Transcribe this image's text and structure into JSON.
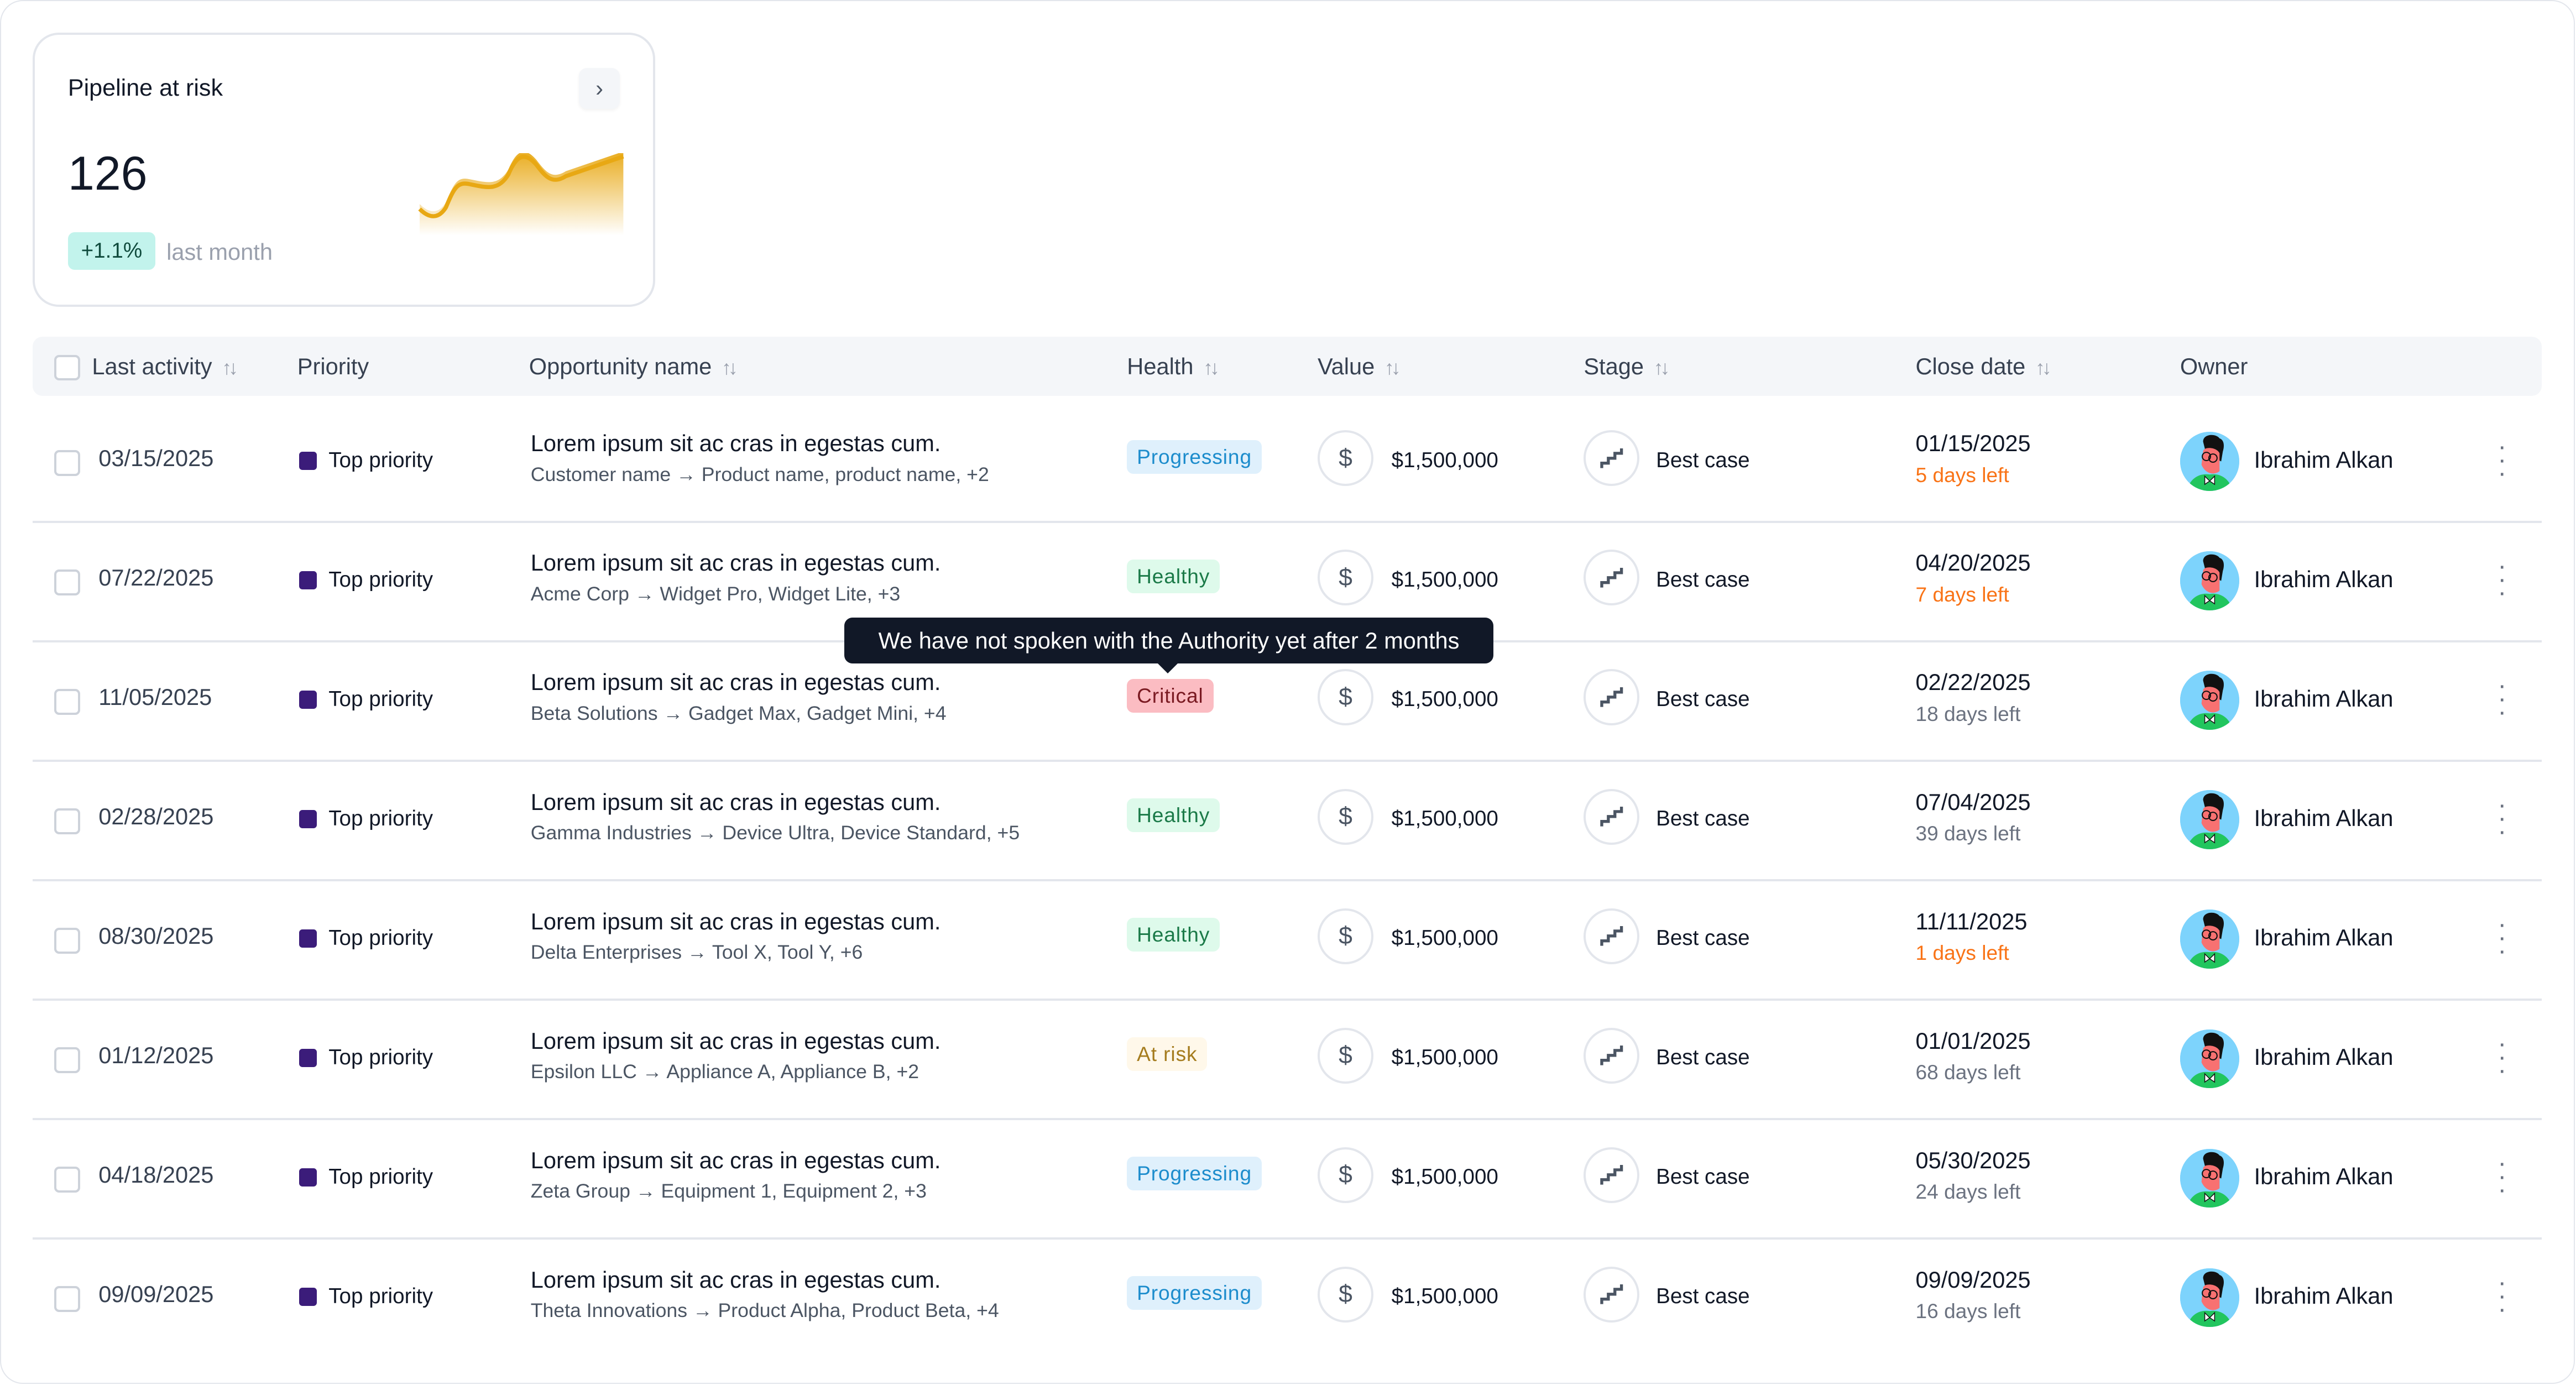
{
  "kpi": {
    "title": "Pipeline at risk",
    "value": "126",
    "delta": "+1.1%",
    "delta_label": "last month",
    "expand_icon": "chevron-right-icon",
    "sparkline_color": "#e8a813"
  },
  "table": {
    "columns": [
      "Last activity",
      "Priority",
      "Opportunity name",
      "Health",
      "Value",
      "Stage",
      "Close date",
      "Owner"
    ],
    "sortable": [
      true,
      false,
      true,
      true,
      true,
      true,
      true,
      false
    ],
    "rows": [
      {
        "last_activity": "03/15/2025",
        "priority": "Top priority",
        "name": "Lorem ipsum sit ac cras in egestas cum.",
        "sub": "Customer name → Product name, product name, +2",
        "health": "Progressing",
        "value": "$1,500,000",
        "stage": "Best case",
        "close_date": "01/15/2025",
        "days_left": "5 days left",
        "urgent": true,
        "owner": "Ibrahim Alkan"
      },
      {
        "last_activity": "07/22/2025",
        "priority": "Top priority",
        "name": "Lorem ipsum sit ac cras in egestas cum.",
        "sub": "Acme Corp → Widget Pro, Widget Lite, +3",
        "health": "Healthy",
        "value": "$1,500,000",
        "stage": "Best case",
        "close_date": "04/20/2025",
        "days_left": "7 days left",
        "urgent": true,
        "owner": "Ibrahim Alkan"
      },
      {
        "last_activity": "11/05/2025",
        "priority": "Top priority",
        "name": "Lorem ipsum sit ac cras in egestas cum.",
        "sub": "Beta Solutions → Gadget Max, Gadget Mini, +4",
        "health": "Critical",
        "value": "$1,500,000",
        "stage": "Best case",
        "close_date": "02/22/2025",
        "days_left": "18 days left",
        "urgent": false,
        "owner": "Ibrahim Alkan"
      },
      {
        "last_activity": "02/28/2025",
        "priority": "Top priority",
        "name": "Lorem ipsum sit ac cras in egestas cum.",
        "sub": "Gamma Industries → Device Ultra, Device Standard, +5",
        "health": "Healthy",
        "value": "$1,500,000",
        "stage": "Best case",
        "close_date": "07/04/2025",
        "days_left": "39 days left",
        "urgent": false,
        "owner": "Ibrahim Alkan"
      },
      {
        "last_activity": "08/30/2025",
        "priority": "Top priority",
        "name": "Lorem ipsum sit ac cras in egestas cum.",
        "sub": "Delta Enterprises → Tool X, Tool Y, +6",
        "health": "Healthy",
        "value": "$1,500,000",
        "stage": "Best case",
        "close_date": "11/11/2025",
        "days_left": "1 days left",
        "urgent": true,
        "owner": "Ibrahim Alkan"
      },
      {
        "last_activity": "01/12/2025",
        "priority": "Top priority",
        "name": "Lorem ipsum sit ac cras in egestas cum.",
        "sub": "Epsilon LLC → Appliance A, Appliance B, +2",
        "health": "At risk",
        "value": "$1,500,000",
        "stage": "Best case",
        "close_date": "01/01/2025",
        "days_left": "68 days left",
        "urgent": false,
        "owner": "Ibrahim Alkan"
      },
      {
        "last_activity": "04/18/2025",
        "priority": "Top priority",
        "name": "Lorem ipsum sit ac cras in egestas cum.",
        "sub": "Zeta Group → Equipment 1, Equipment 2, +3",
        "health": "Progressing",
        "value": "$1,500,000",
        "stage": "Best case",
        "close_date": "05/30/2025",
        "days_left": "24 days left",
        "urgent": false,
        "owner": "Ibrahim Alkan"
      },
      {
        "last_activity": "09/09/2025",
        "priority": "Top priority",
        "name": "Lorem ipsum sit ac cras in egestas cum.",
        "sub": "Theta Innovations → Product Alpha, Product Beta, +4",
        "health": "Progressing",
        "value": "$1,500,000",
        "stage": "Best case",
        "close_date": "09/09/2025",
        "days_left": "16 days left",
        "urgent": false,
        "owner": "Ibrahim Alkan"
      }
    ]
  },
  "tooltip": "We have not spoken with the Authority yet after 2 months",
  "colors": {
    "priority": "#3b1c7a",
    "urgent_days": "#f97316",
    "normal_days": "#6b7280",
    "health": {
      "Progressing": {
        "bg": "#dff0fc",
        "fg": "#1c8ccc"
      },
      "Healthy": {
        "bg": "#defaeb",
        "fg": "#1b7a48"
      },
      "Critical": {
        "bg": "#fbbcc2",
        "fg": "#7a1a22"
      },
      "At risk": {
        "bg": "#fff8ea",
        "fg": "#a57c1e"
      }
    }
  }
}
